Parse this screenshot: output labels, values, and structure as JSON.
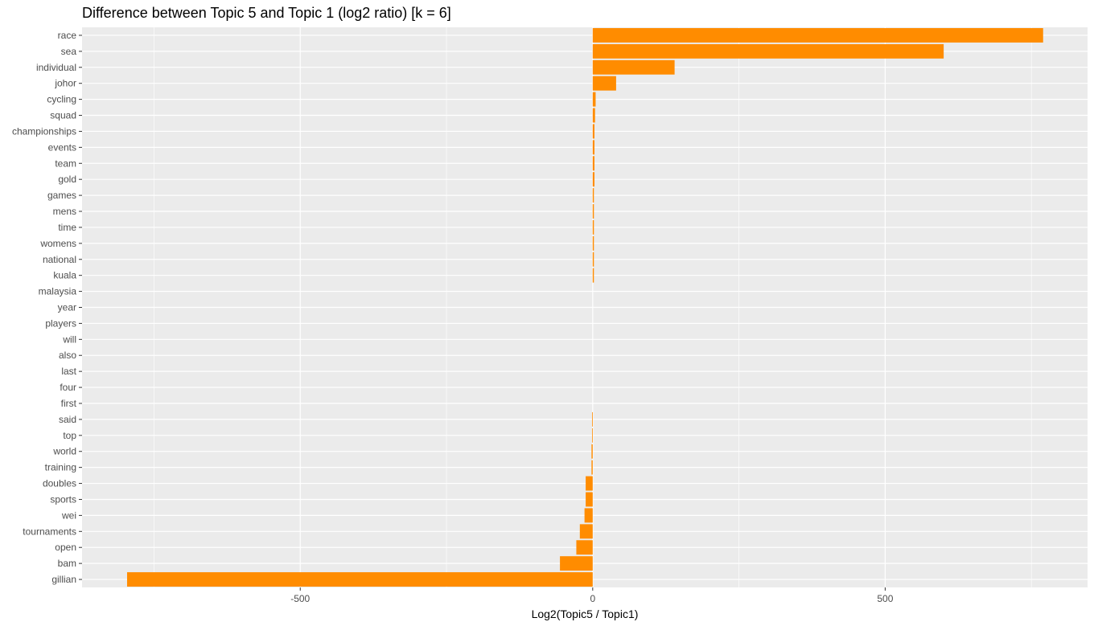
{
  "chart_data": {
    "type": "bar",
    "orientation": "horizontal",
    "title": "Difference between Topic 5 and Topic 1 (log2 ratio) [k = 6]",
    "xlabel": "Log2(Topic5 / Topic1)",
    "ylabel": "",
    "xlim": [
      -873,
      846
    ],
    "x_ticks": [
      -500,
      0,
      500
    ],
    "x_tick_labels": [
      "-500",
      "0",
      "500"
    ],
    "grid": true,
    "legend": "none",
    "colors": {
      "bar": "#ff8c00",
      "panel": "#ebebeb",
      "grid": "#ffffff"
    },
    "categories": [
      "race",
      "sea",
      "individual",
      "johor",
      "cycling",
      "squad",
      "championships",
      "events",
      "team",
      "gold",
      "games",
      "mens",
      "time",
      "womens",
      "national",
      "kuala",
      "malaysia",
      "year",
      "players",
      "will",
      "also",
      "last",
      "four",
      "first",
      "said",
      "top",
      "world",
      "training",
      "doubles",
      "sports",
      "wei",
      "tournaments",
      "open",
      "bam",
      "gillian"
    ],
    "values": [
      770,
      600,
      140,
      40,
      5,
      4,
      3,
      3,
      3,
      3,
      2,
      2,
      2,
      2,
      2,
      2,
      0,
      0,
      0,
      0,
      0,
      0,
      0,
      0,
      -1,
      -1,
      -2,
      -2,
      -12,
      -12,
      -14,
      -22,
      -28,
      -56,
      -796
    ]
  }
}
